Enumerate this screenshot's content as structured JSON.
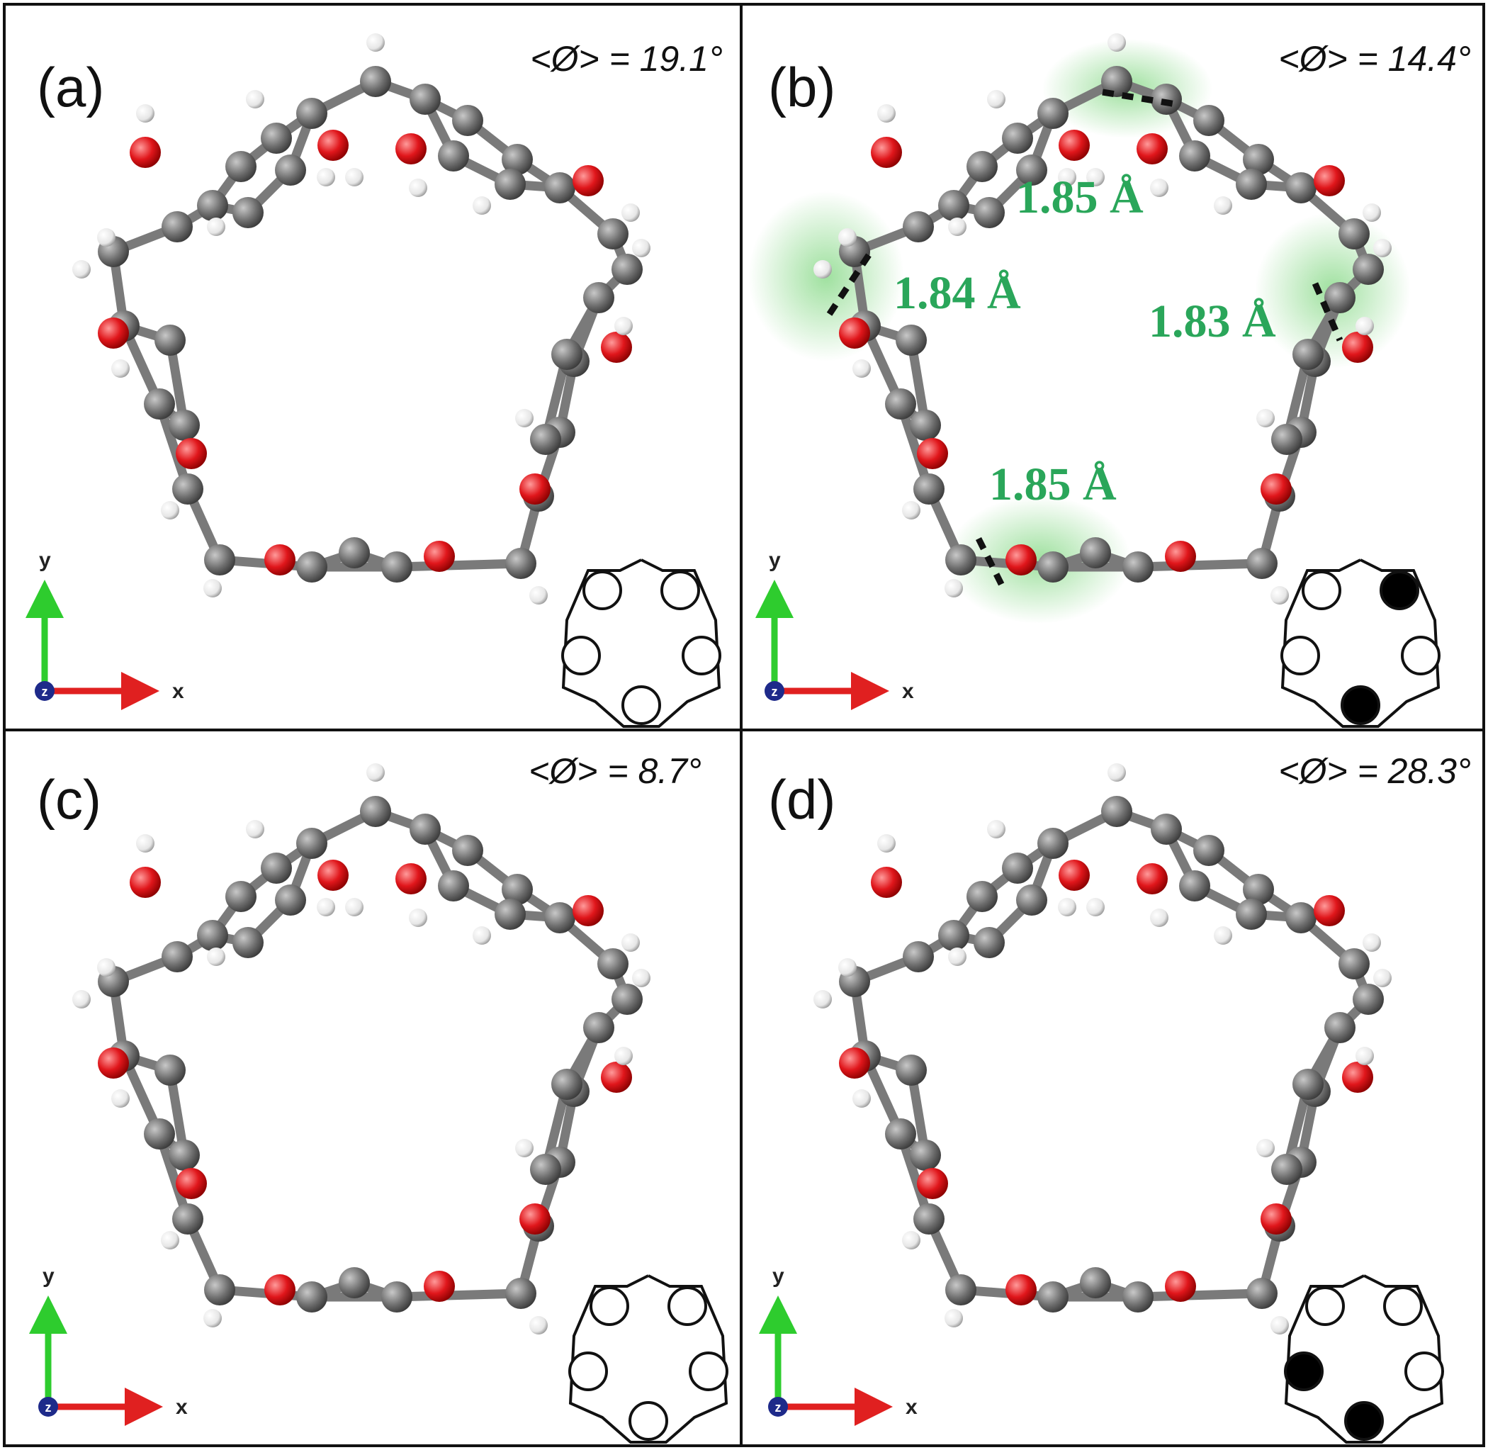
{
  "panels": [
    {
      "id": "a",
      "label": "(a)",
      "angle": "<Ø> = 19.1°",
      "schematic_fill": [
        "white",
        "white",
        "white",
        "white",
        "white"
      ]
    },
    {
      "id": "b",
      "label": "(b)",
      "angle": "<Ø> = 14.4°",
      "schematic_fill": [
        "white",
        "black",
        "white",
        "white",
        "black"
      ],
      "hbonds": [
        "1.85 Å",
        "1.84 Å",
        "1.83 Å",
        "1.85 Å"
      ]
    },
    {
      "id": "c",
      "label": "(c)",
      "angle": "<Ø> = 8.7°",
      "schematic_fill": [
        "white",
        "white",
        "white",
        "white",
        "white"
      ]
    },
    {
      "id": "d",
      "label": "(d)",
      "angle": "<Ø> = 28.3°",
      "schematic_fill": [
        "white",
        "white",
        "black",
        "white",
        "black"
      ]
    }
  ],
  "axes": {
    "x_label": "x",
    "y_label": "y",
    "z_label": "z"
  },
  "colors": {
    "carbon": "#6e6e6e",
    "oxygen": "#e0161b",
    "hydrogen": "#f2f2f2",
    "hbond_text": "#2aa65a",
    "x_axis": "#e02020",
    "y_axis": "#2ecc2e",
    "z_axis": "#1e2a8a"
  }
}
